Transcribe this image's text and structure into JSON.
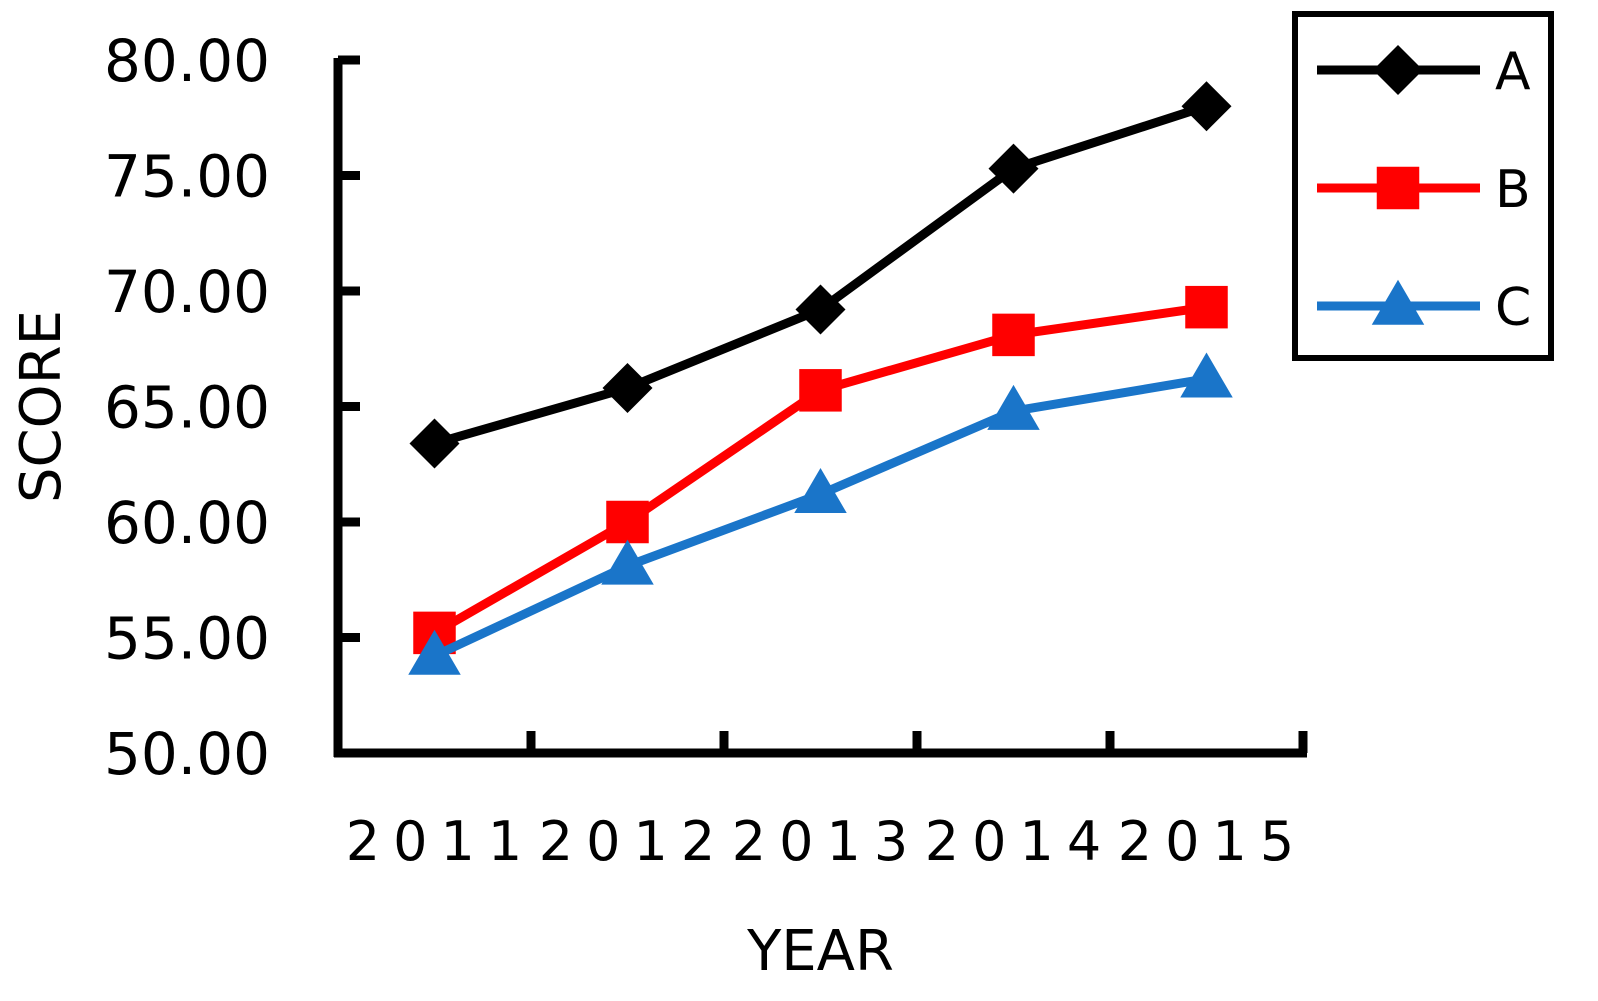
{
  "chart_data": {
    "type": "line",
    "categories": [
      "2011",
      "2012",
      "2013",
      "2014",
      "2015"
    ],
    "xlabel": "YEAR",
    "ylabel": "SCORE",
    "ylim": [
      50,
      80
    ],
    "yticks": [
      "50.00",
      "55.00",
      "60.00",
      "65.00",
      "70.00",
      "75.00",
      "80.00"
    ],
    "grid": false,
    "legend_position": "top-right",
    "series": [
      {
        "name": "A",
        "color": "#000000",
        "marker": "diamond",
        "values": [
          63.4,
          65.8,
          69.2,
          75.3,
          78.0
        ]
      },
      {
        "name": "B",
        "color": "#ff0000",
        "marker": "square",
        "values": [
          55.2,
          60.0,
          65.7,
          68.1,
          69.3
        ]
      },
      {
        "name": "C",
        "color": "#1a75c9",
        "marker": "triangle",
        "values": [
          54.2,
          58.1,
          61.2,
          64.8,
          66.2
        ]
      }
    ]
  }
}
